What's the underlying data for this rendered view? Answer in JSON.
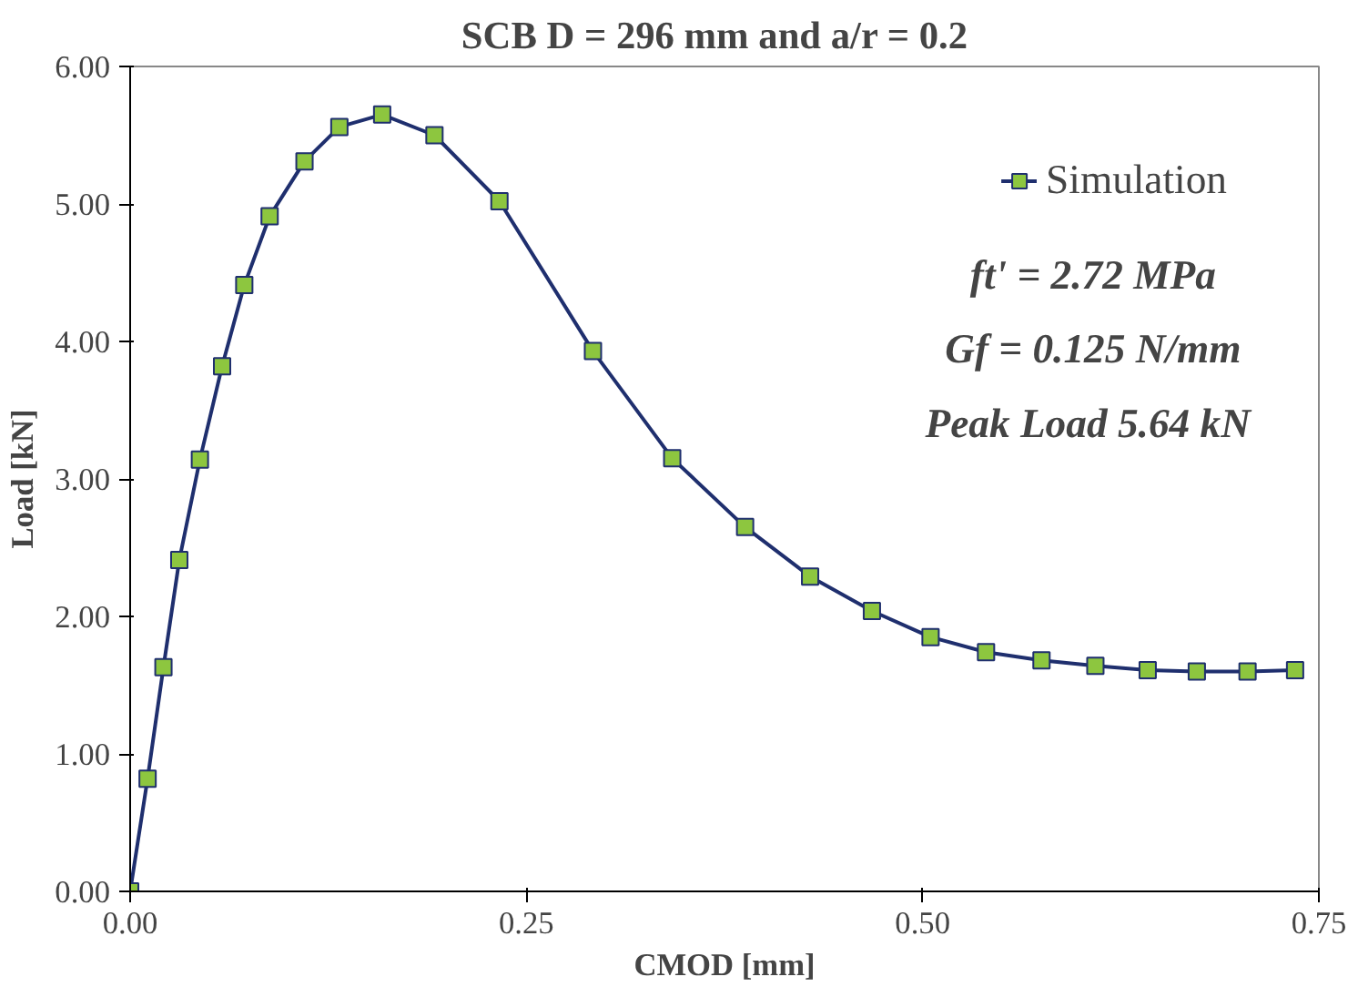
{
  "chart_data": {
    "type": "line",
    "title": "SCB  D = 296 mm and a/r  = 0.2",
    "xlabel": "CMOD [mm]",
    "ylabel": "Load [kN]",
    "series": [
      {
        "name": "Simulation",
        "color": "#1f2f6e",
        "x": [
          0,
          0.011,
          0.021,
          0.031,
          0.044,
          0.058,
          0.072,
          0.088,
          0.11,
          0.132,
          0.159,
          0.192,
          0.233,
          0.292,
          0.342,
          0.388,
          0.429,
          0.468,
          0.505,
          0.54,
          0.575,
          0.609,
          0.642,
          0.673,
          0.705,
          0.735
        ],
        "values": [
          0,
          0.82,
          1.63,
          2.41,
          3.14,
          3.82,
          4.41,
          4.91,
          5.31,
          5.56,
          5.65,
          5.5,
          5.02,
          3.93,
          3.15,
          2.65,
          2.29,
          2.04,
          1.85,
          1.74,
          1.68,
          1.64,
          1.61,
          1.6,
          1.6,
          1.61
        ]
      }
    ],
    "marker": "square",
    "line_style": "solid",
    "grid": false,
    "legend": "top right",
    "xlim": [
      0,
      0.75
    ],
    "xticks": [
      {
        "value": 0,
        "label": "0.00"
      },
      0.25,
      {
        "value": 0.5,
        "label": "0.50"
      },
      0.75
    ],
    "ylim": [
      0,
      6
    ],
    "yticks": [
      {
        "value": 0,
        "label": "0.00"
      },
      {
        "value": 1,
        "label": "1.00"
      },
      {
        "value": 2,
        "label": "2.00"
      },
      {
        "value": 3,
        "label": "3.00"
      },
      {
        "value": 4,
        "label": "4.00"
      },
      {
        "value": 5,
        "label": "5.00"
      },
      {
        "value": 6,
        "label": "6.00"
      }
    ],
    "annotations": [
      "ft' = 2.72 MPa",
      "Gf = 0.125 N/mm",
      "Peak  Load 5.64 kN"
    ]
  }
}
